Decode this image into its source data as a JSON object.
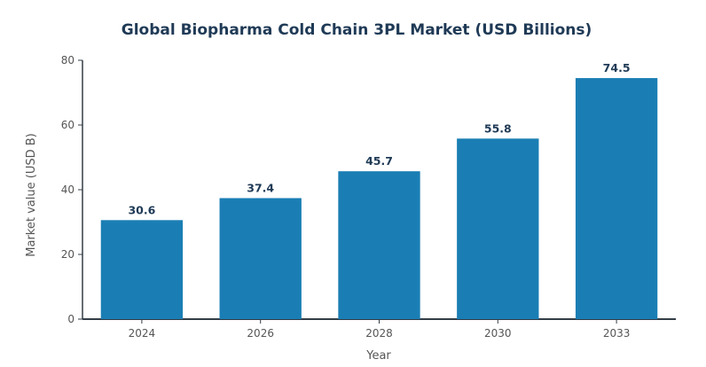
{
  "chart_data": {
    "type": "bar",
    "title": "Global Biopharma Cold Chain 3PL Market (USD Billions)",
    "xlabel": "Year",
    "ylabel": "Market value (USD B)",
    "categories": [
      "2024",
      "2026",
      "2028",
      "2030",
      "2033"
    ],
    "values": [
      30.6,
      37.4,
      45.7,
      55.8,
      74.5
    ],
    "data_labels": [
      "30.6",
      "37.4",
      "45.7",
      "55.8",
      "74.5"
    ],
    "ylim": [
      0,
      80
    ],
    "yticks": [
      0,
      20,
      40,
      60,
      80
    ],
    "ytick_labels": [
      "0",
      "20",
      "40",
      "60",
      "80"
    ],
    "grid": false,
    "legend": "none",
    "colors": {
      "bar": "#1a7eb4",
      "axis": "#333d47",
      "title": "#1f3a56"
    }
  }
}
